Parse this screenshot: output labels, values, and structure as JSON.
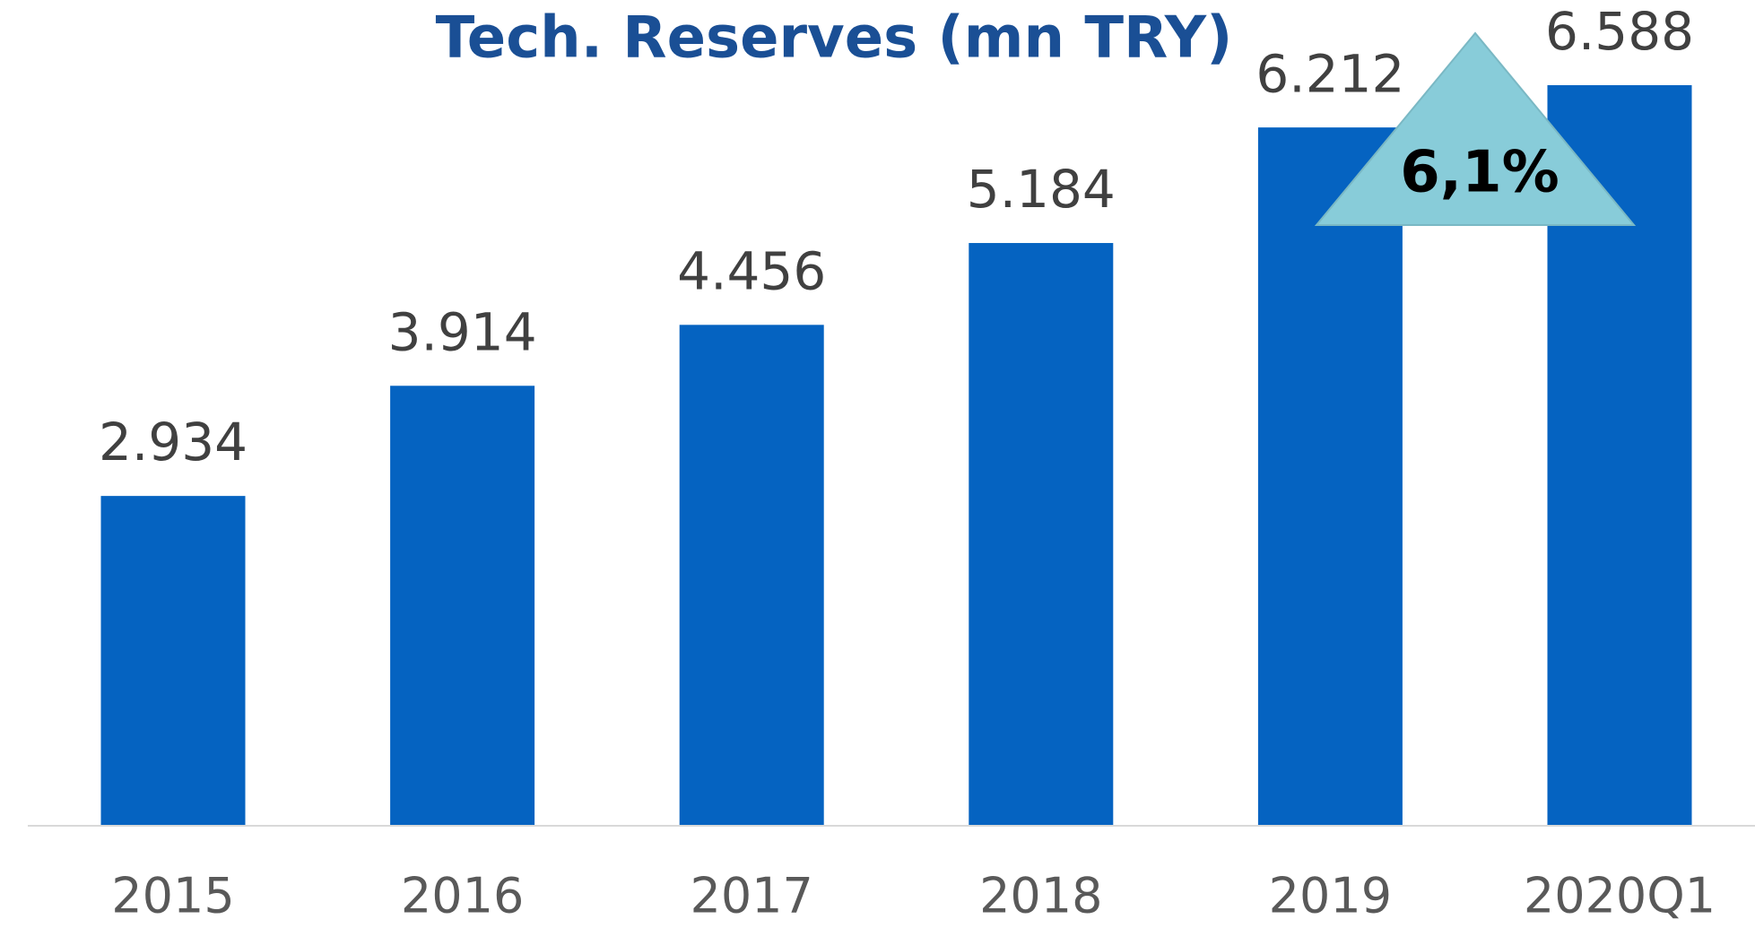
{
  "chart_data": {
    "type": "bar",
    "title": "Tech. Reserves (mn TRY)",
    "categories": [
      "2015",
      "2016",
      "2017",
      "2018",
      "2019",
      "2020Q1"
    ],
    "values": [
      2934,
      3914,
      4456,
      5184,
      6212,
      6588
    ],
    "value_labels": [
      "2.934",
      "3.914",
      "4.456",
      "5.184",
      "6.212",
      "6.588"
    ],
    "color": "#0563c1",
    "annotation": "6,1%",
    "annotation_color": "#88ccd9"
  }
}
